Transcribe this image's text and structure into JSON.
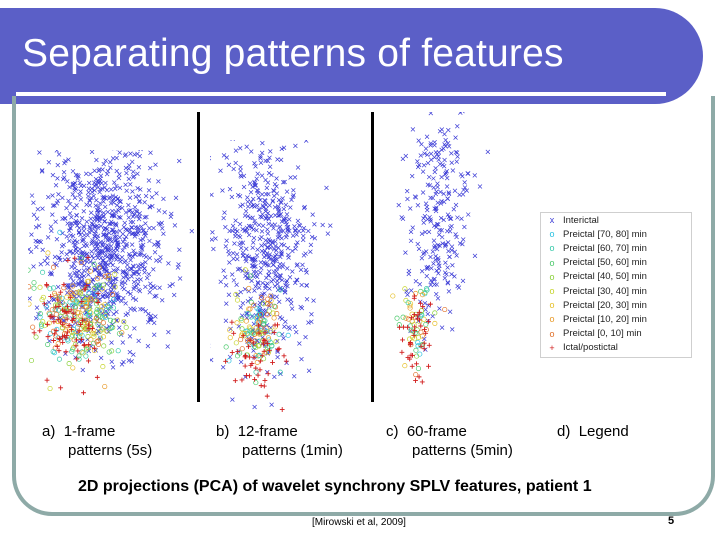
{
  "slide": {
    "title": "Separating patterns of features",
    "subtitle": "2D projections (PCA) of wavelet synchrony SPLV features, patient 1",
    "citation": "[Mirowski et al, 2009]",
    "page_number": "5"
  },
  "panels": [
    {
      "label": "a)",
      "line1": "1-frame",
      "line2": "patterns (5s)"
    },
    {
      "label": "b)",
      "line1": "12-frame",
      "line2": "patterns (1min)"
    },
    {
      "label": "c)",
      "line1": "60-frame",
      "line2": "patterns (5min)"
    },
    {
      "label": "d)",
      "line1": "Legend",
      "line2": ""
    }
  ],
  "legend": {
    "items": [
      {
        "label": "Interictal",
        "color": "#3b3bd6",
        "marker": "x"
      },
      {
        "label": "Preictal [70, 80] min",
        "color": "#29c1e0",
        "marker": "o"
      },
      {
        "label": "Preictal [60, 70] min",
        "color": "#37c9a9",
        "marker": "o"
      },
      {
        "label": "Preictal [50, 60] min",
        "color": "#4cc96c",
        "marker": "o"
      },
      {
        "label": "Preictal [40, 50] min",
        "color": "#8ad13a",
        "marker": "o"
      },
      {
        "label": "Preictal [30, 40] min",
        "color": "#c6d42c",
        "marker": "o"
      },
      {
        "label": "Preictal [20, 30] min",
        "color": "#e6c02a",
        "marker": "o"
      },
      {
        "label": "Preictal [10, 20] min",
        "color": "#e89a2a",
        "marker": "o"
      },
      {
        "label": "Preictal [0, 10] min",
        "color": "#e0702a",
        "marker": "o"
      },
      {
        "label": "Ictal/postictal",
        "color": "#d11d1d",
        "marker": "+"
      }
    ]
  }
}
